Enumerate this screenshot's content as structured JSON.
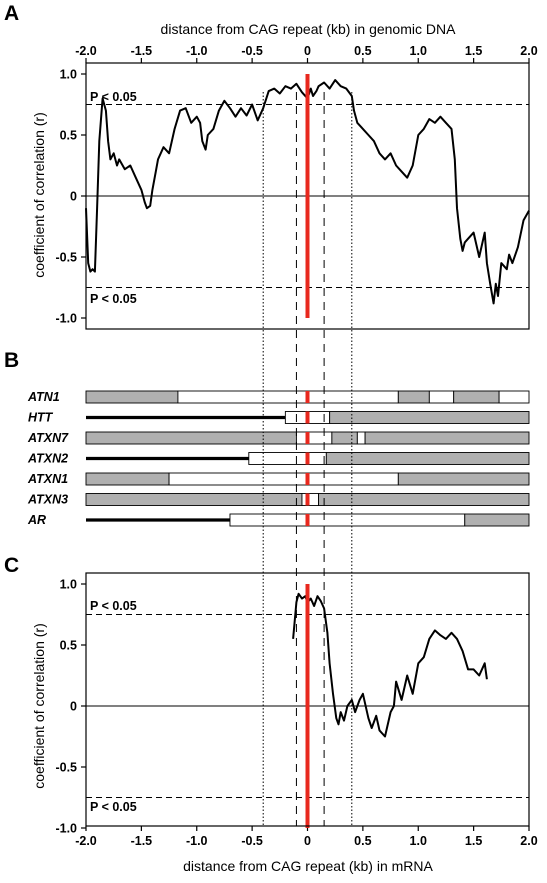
{
  "panels": {
    "a": "A",
    "b": "B",
    "c": "C"
  },
  "colors": {
    "repeat_line": "#e8281e",
    "gene_shaded": "#b0b0b0",
    "gene_unshaded": "#ffffff",
    "curve": "#000000"
  },
  "panel_a": {
    "axis_title_top": "distance from CAG repeat (kb) in genomic DNA",
    "ylabel": "coefficient of correlation (r)",
    "sig_label": "P < 0.05"
  },
  "panel_c": {
    "axis_title_bottom": "distance from CAG repeat (kb) in mRNA",
    "ylabel": "coefficient of correlation (r)",
    "sig_label": "P < 0.05"
  },
  "chart_data": [
    {
      "panel": "A",
      "type": "line",
      "xlabel": "distance from CAG repeat (kb) in genomic DNA",
      "ylabel": "coefficient of correlation (r)",
      "xlim": [
        -2.0,
        2.0
      ],
      "ylim": [
        -1.0,
        1.0
      ],
      "x_ticks": [
        "-2.0",
        "-1.5",
        "-1.0",
        "-0.5",
        "0",
        "0.5",
        "1.0",
        "1.5",
        "2.0"
      ],
      "y_ticks": [
        "1.0",
        "0.5",
        "0",
        "-0.5",
        "-1.0"
      ],
      "significance_lines": [
        0.75,
        -0.75
      ],
      "significance_label": "P < 0.05",
      "dotted_vlines": [
        -0.4,
        0.4
      ],
      "dashed_vlines": [
        -0.1,
        0.15
      ],
      "repeat_x": 0,
      "series": [
        {
          "x": [
            -2.0,
            -1.98,
            -1.96,
            -1.94,
            -1.92,
            -1.9,
            -1.88,
            -1.85,
            -1.82,
            -1.8,
            -1.78,
            -1.75,
            -1.72,
            -1.7,
            -1.65,
            -1.6,
            -1.55,
            -1.5,
            -1.47,
            -1.45,
            -1.42,
            -1.4,
            -1.37,
            -1.35,
            -1.3,
            -1.25,
            -1.2,
            -1.15,
            -1.1,
            -1.05,
            -1.0,
            -0.97,
            -0.95,
            -0.92,
            -0.9,
            -0.85,
            -0.8,
            -0.75,
            -0.7,
            -0.65,
            -0.6,
            -0.55,
            -0.5,
            -0.45,
            -0.4,
            -0.35,
            -0.3,
            -0.25,
            -0.2,
            -0.15,
            -0.1,
            -0.05,
            0.0,
            0.03,
            0.05,
            0.08,
            0.1,
            0.15,
            0.2,
            0.25,
            0.3,
            0.35,
            0.4,
            0.42,
            0.45,
            0.5,
            0.55,
            0.6,
            0.65,
            0.7,
            0.75,
            0.8,
            0.85,
            0.9,
            0.95,
            1.0,
            1.05,
            1.1,
            1.15,
            1.2,
            1.25,
            1.3,
            1.33,
            1.35,
            1.38,
            1.4,
            1.42,
            1.45,
            1.5,
            1.55,
            1.6,
            1.62,
            1.65,
            1.68,
            1.7,
            1.72,
            1.75,
            1.8,
            1.82,
            1.85,
            1.9,
            1.95,
            2.0
          ],
          "y": [
            -0.1,
            -0.55,
            -0.62,
            -0.6,
            -0.62,
            -0.1,
            0.45,
            0.8,
            0.7,
            0.45,
            0.3,
            0.35,
            0.25,
            0.3,
            0.22,
            0.25,
            0.15,
            0.05,
            -0.05,
            -0.1,
            -0.08,
            0.05,
            0.2,
            0.3,
            0.4,
            0.35,
            0.55,
            0.7,
            0.72,
            0.6,
            0.65,
            0.6,
            0.45,
            0.38,
            0.5,
            0.55,
            0.7,
            0.78,
            0.72,
            0.65,
            0.72,
            0.66,
            0.75,
            0.62,
            0.72,
            0.86,
            0.88,
            0.84,
            0.9,
            0.88,
            0.92,
            0.85,
            0.8,
            0.88,
            0.82,
            0.86,
            0.9,
            0.93,
            0.88,
            0.95,
            0.9,
            0.88,
            0.82,
            0.7,
            0.6,
            0.55,
            0.5,
            0.45,
            0.35,
            0.3,
            0.35,
            0.25,
            0.2,
            0.15,
            0.25,
            0.5,
            0.55,
            0.63,
            0.6,
            0.65,
            0.6,
            0.55,
            0.3,
            -0.1,
            -0.35,
            -0.45,
            -0.38,
            -0.35,
            -0.3,
            -0.5,
            -0.3,
            -0.55,
            -0.72,
            -0.88,
            -0.72,
            -0.82,
            -0.55,
            -0.6,
            -0.48,
            -0.55,
            -0.42,
            -0.2,
            -0.12
          ]
        }
      ]
    },
    {
      "panel": "B",
      "type": "table",
      "xlim": [
        -2.0,
        2.0
      ],
      "genes": [
        {
          "name": "ATN1",
          "lead_start": null,
          "segments": [
            {
              "start": -2.0,
              "end": -1.17,
              "shaded": true
            },
            {
              "start": -1.17,
              "end": 0.82,
              "shaded": false
            },
            {
              "start": 0.82,
              "end": 1.1,
              "shaded": true
            },
            {
              "start": 1.1,
              "end": 1.32,
              "shaded": false
            },
            {
              "start": 1.32,
              "end": 1.73,
              "shaded": true
            },
            {
              "start": 1.73,
              "end": 2.0,
              "shaded": false
            }
          ]
        },
        {
          "name": "HTT",
          "lead_start": -2.0,
          "segments": [
            {
              "start": -0.2,
              "end": 0.2,
              "shaded": false
            },
            {
              "start": 0.2,
              "end": 2.0,
              "shaded": true
            }
          ]
        },
        {
          "name": "ATXN7",
          "lead_start": null,
          "segments": [
            {
              "start": -2.0,
              "end": -0.1,
              "shaded": true
            },
            {
              "start": -0.1,
              "end": 0.22,
              "shaded": false
            },
            {
              "start": 0.22,
              "end": 0.45,
              "shaded": true
            },
            {
              "start": 0.45,
              "end": 0.52,
              "shaded": false
            },
            {
              "start": 0.52,
              "end": 2.0,
              "shaded": true
            }
          ]
        },
        {
          "name": "ATXN2",
          "lead_start": -2.0,
          "segments": [
            {
              "start": -0.53,
              "end": 0.17,
              "shaded": false
            },
            {
              "start": 0.17,
              "end": 2.0,
              "shaded": true
            }
          ]
        },
        {
          "name": "ATXN1",
          "lead_start": null,
          "segments": [
            {
              "start": -2.0,
              "end": -1.25,
              "shaded": true
            },
            {
              "start": -1.25,
              "end": 0.82,
              "shaded": false
            },
            {
              "start": 0.82,
              "end": 2.0,
              "shaded": true
            }
          ]
        },
        {
          "name": "ATXN3",
          "lead_start": null,
          "segments": [
            {
              "start": -2.0,
              "end": -0.05,
              "shaded": true
            },
            {
              "start": -0.05,
              "end": 0.1,
              "shaded": false
            },
            {
              "start": 0.1,
              "end": 2.0,
              "shaded": true
            }
          ]
        },
        {
          "name": "AR",
          "lead_start": -2.0,
          "segments": [
            {
              "start": -0.7,
              "end": 1.42,
              "shaded": false
            },
            {
              "start": 1.42,
              "end": 2.0,
              "shaded": true
            }
          ]
        }
      ]
    },
    {
      "panel": "C",
      "type": "line",
      "xlabel": "distance from CAG repeat (kb) in mRNA",
      "ylabel": "coefficient of correlation (r)",
      "xlim": [
        -2.0,
        2.0
      ],
      "ylim": [
        -1.0,
        1.0
      ],
      "x_ticks": [
        "-2.0",
        "-1.5",
        "-1.0",
        "-0.5",
        "0",
        "0.5",
        "1.0",
        "1.5",
        "2.0"
      ],
      "y_ticks": [
        "1.0",
        "0.5",
        "0",
        "-0.5",
        "-1.0"
      ],
      "significance_lines": [
        0.75,
        -0.75
      ],
      "significance_label": "P < 0.05",
      "dotted_vlines": [
        -0.4,
        0.4
      ],
      "dashed_vlines": [
        -0.1,
        0.15
      ],
      "repeat_x": 0,
      "series": [
        {
          "x": [
            -0.13,
            -0.1,
            -0.08,
            -0.05,
            -0.02,
            0.0,
            0.03,
            0.06,
            0.09,
            0.12,
            0.15,
            0.18,
            0.2,
            0.23,
            0.26,
            0.28,
            0.3,
            0.33,
            0.36,
            0.4,
            0.43,
            0.47,
            0.5,
            0.55,
            0.58,
            0.62,
            0.65,
            0.7,
            0.75,
            0.78,
            0.8,
            0.85,
            0.9,
            0.95,
            1.0,
            1.05,
            1.1,
            1.15,
            1.2,
            1.25,
            1.3,
            1.35,
            1.4,
            1.45,
            1.5,
            1.55,
            1.6,
            1.62
          ],
          "y": [
            0.55,
            0.85,
            0.92,
            0.88,
            0.9,
            0.85,
            0.88,
            0.82,
            0.9,
            0.86,
            0.8,
            0.6,
            0.35,
            0.1,
            -0.1,
            -0.15,
            -0.05,
            -0.12,
            0.0,
            0.05,
            -0.05,
            0.05,
            0.1,
            -0.1,
            -0.18,
            -0.08,
            -0.2,
            -0.25,
            -0.05,
            0.0,
            0.2,
            0.05,
            0.25,
            0.1,
            0.35,
            0.4,
            0.55,
            0.62,
            0.58,
            0.55,
            0.6,
            0.55,
            0.45,
            0.3,
            0.3,
            0.25,
            0.35,
            0.22
          ]
        }
      ]
    }
  ]
}
